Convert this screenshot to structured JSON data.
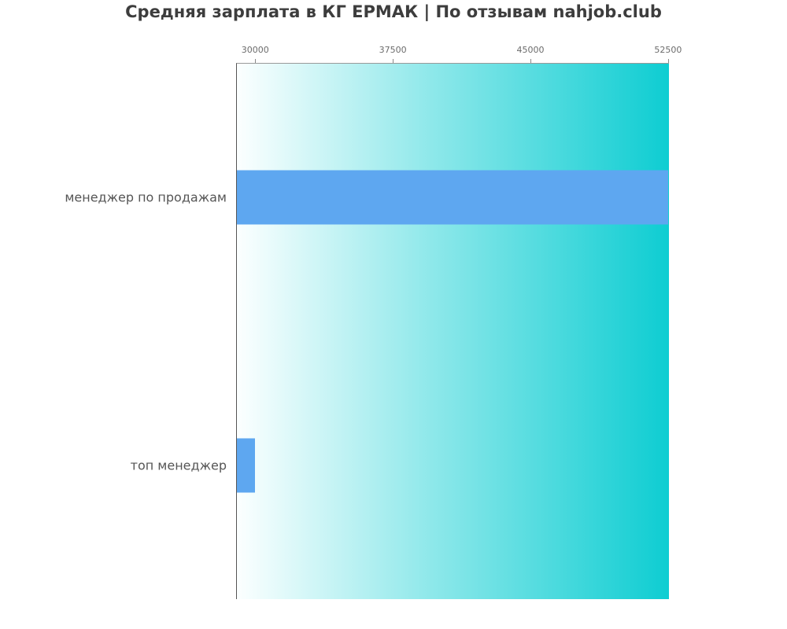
{
  "title": "Средняя зарплата в КГ ЕРМАК | По отзывам nahjob.club",
  "chart_data": {
    "type": "bar",
    "orientation": "horizontal",
    "title": "Средняя зарплата в КГ ЕРМАК | По отзывам nahjob.club",
    "categories": [
      "менеджер по продажам",
      "топ менеджер"
    ],
    "values": [
      52500,
      30000
    ],
    "x_tick_labels": [
      "30000",
      "37500",
      "45000",
      "52500"
    ],
    "x_tick_values": [
      30000,
      37500,
      45000,
      52500
    ],
    "xlim": [
      29000,
      52550
    ],
    "xlabel": "",
    "ylabel": "",
    "grid": false,
    "legend": null,
    "tick_position": "top",
    "colors": {
      "bar": "#5ea7f0",
      "gradient_start": "#fcffff",
      "gradient_mid": "#8ee8ea",
      "gradient_end": "#0ecdd2",
      "title_text": "#3d3d3d",
      "category_text": "#555555",
      "tick_text": "#6b6b6b",
      "spine_top": "#999999",
      "spine_left": "#555555"
    }
  }
}
